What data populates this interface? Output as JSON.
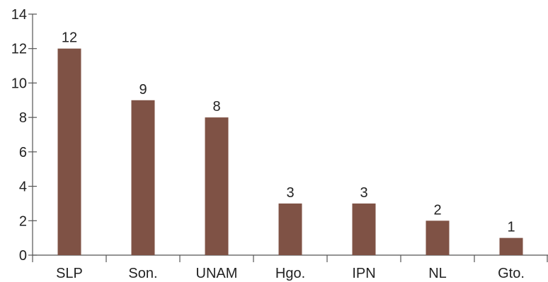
{
  "chart_data": {
    "type": "bar",
    "categories": [
      "SLP",
      "Son.",
      "UNAM",
      "Hgo.",
      "IPN",
      "NL",
      "Gto."
    ],
    "values": [
      12,
      9,
      8,
      3,
      3,
      2,
      1
    ],
    "ylim": [
      0,
      14
    ],
    "yticks": [
      0,
      2,
      4,
      6,
      8,
      10,
      12,
      14
    ],
    "ytick_labels": [
      "0",
      "2",
      "4",
      "6",
      "8",
      "10",
      "12",
      "14"
    ],
    "data_labels": [
      "12",
      "9",
      "8",
      "3",
      "3",
      "2",
      "1"
    ],
    "title": "",
    "xlabel": "",
    "ylabel": "",
    "grid": false,
    "legend": "none",
    "bar_color": "#7f5245"
  }
}
